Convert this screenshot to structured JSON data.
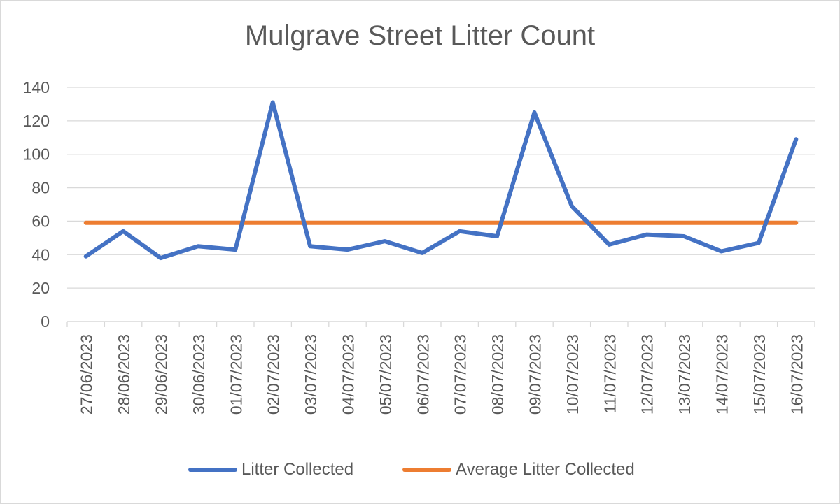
{
  "chart_data": {
    "type": "line",
    "title": "Mulgrave Street Litter Count",
    "xlabel": "",
    "ylabel": "",
    "categories": [
      "27/06/2023",
      "28/06/2023",
      "29/06/2023",
      "30/06/2023",
      "01/07/2023",
      "02/07/2023",
      "03/07/2023",
      "04/07/2023",
      "05/07/2023",
      "06/07/2023",
      "07/07/2023",
      "08/07/2023",
      "09/07/2023",
      "10/07/2023",
      "11/07/2023",
      "12/07/2023",
      "13/07/2023",
      "14/07/2023",
      "15/07/2023",
      "16/07/2023"
    ],
    "ylim": [
      0,
      140
    ],
    "yticks": [
      0,
      20,
      40,
      60,
      80,
      100,
      120,
      140
    ],
    "grid": true,
    "legend_position": "bottom",
    "series": [
      {
        "name": "Litter Collected",
        "color": "#4472c4",
        "values": [
          39,
          54,
          38,
          45,
          43,
          131,
          45,
          43,
          48,
          41,
          54,
          51,
          125,
          69,
          46,
          52,
          51,
          42,
          47,
          109
        ]
      },
      {
        "name": "Average Litter Collected",
        "color": "#ed7d31",
        "values": [
          59,
          59,
          59,
          59,
          59,
          59,
          59,
          59,
          59,
          59,
          59,
          59,
          59,
          59,
          59,
          59,
          59,
          59,
          59,
          59
        ]
      }
    ]
  }
}
